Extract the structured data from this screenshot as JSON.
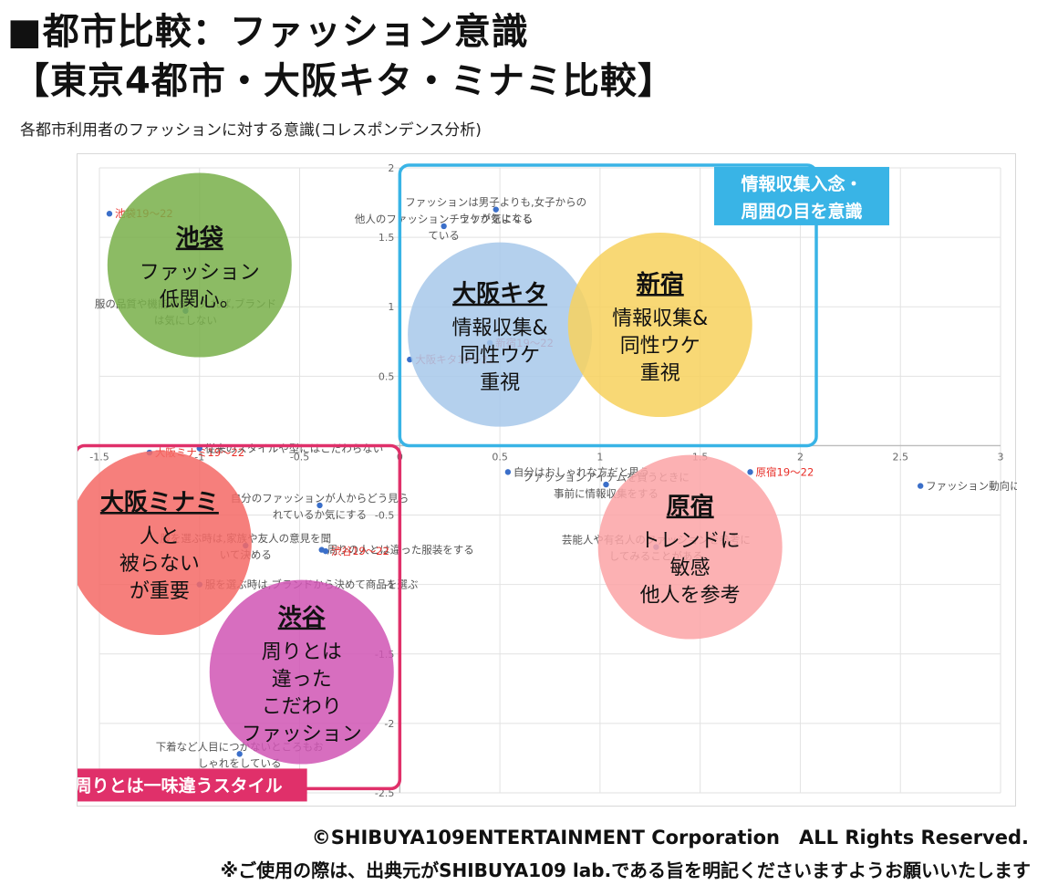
{
  "page": {
    "title_line1": "■都市比較：ファッション意識",
    "title_line2": "【東京4都市・大阪キタ・ミナミ比較】",
    "subtitle": "各都市利用者のファッションに対する意識(コレスポンデンス分析)",
    "copyright": "©SHIBUYA109ENTERTAINMENT Corporation　ALL Rights Reserved.",
    "notice": "※ご使用の際は、出典元がSHIBUYA109 lab.である旨を明記くださいますようお願いいたします"
  },
  "chart_data": {
    "type": "scatter",
    "xlim": [
      -1.5,
      3
    ],
    "ylim": [
      -2.5,
      2
    ],
    "x_ticks": [
      "-1.5",
      "-1",
      "-0.5",
      "0",
      "0.5",
      "1",
      "1.5",
      "2",
      "2.5",
      "3"
    ],
    "y_ticks": [
      "2",
      "1.5",
      "1",
      "0.5",
      "-0.5",
      "-1",
      "-1.5",
      "-2",
      "-2.5"
    ],
    "grid": true,
    "colors": {
      "gridline": "#e2e2e2",
      "axis": "#bcbcbc",
      "point": "#3b6fc9",
      "city_label": "#e8302a",
      "item_label": "#555555"
    },
    "points": [
      {
        "x": 0.48,
        "y": 1.7,
        "label_lines": [
          "ファッションは男子よりも,女子からの",
          "ウケが気になる"
        ],
        "kind": "item"
      },
      {
        "x": 0.22,
        "y": 1.58,
        "label_lines": [
          "他人のファッションチェックをよくし",
          "ている"
        ],
        "kind": "item"
      },
      {
        "x": -1.07,
        "y": 0.97,
        "label_lines": [
          "服の品質や機能が気に入れば,ブランド",
          "は気にしない"
        ],
        "kind": "item"
      },
      {
        "x": 0.05,
        "y": 0.62,
        "label_lines": [
          "大阪キタ19～22"
        ],
        "kind": "city"
      },
      {
        "x": 0.45,
        "y": 0.74,
        "label_lines": [
          "新宿19～22"
        ],
        "kind": "city"
      },
      {
        "x": -1.45,
        "y": 1.67,
        "label_lines": [
          "池袋19～22"
        ],
        "kind": "city"
      },
      {
        "x": -1.25,
        "y": -0.05,
        "label_lines": [
          "大阪ミナミ19～22"
        ],
        "kind": "city"
      },
      {
        "x": -1.0,
        "y": -0.02,
        "label_lines": [
          "従来のスタイルや型にはこだわらない"
        ],
        "kind": "item"
      },
      {
        "x": 0.54,
        "y": -0.19,
        "label_lines": [
          "自分はおしゃれな方だと思う"
        ],
        "kind": "item"
      },
      {
        "x": 1.75,
        "y": -0.19,
        "label_lines": [
          "原宿19～22"
        ],
        "kind": "city"
      },
      {
        "x": 2.6,
        "y": -0.29,
        "label_lines": [
          "ファッション動向に敏感"
        ],
        "kind": "item"
      },
      {
        "x": 1.03,
        "y": -0.28,
        "label_lines": [
          "ファッションアイテムを買うときに",
          "事前に情報収集をする"
        ],
        "kind": "item"
      },
      {
        "x": -0.4,
        "y": -0.43,
        "label_lines": [
          "自分のファッションが人からどう見ら",
          "れているか気にする"
        ],
        "kind": "item"
      },
      {
        "x": -0.77,
        "y": -0.72,
        "label_lines": [
          "服を選ぶ時は,家族や友人の意見を聞",
          "いて決める"
        ],
        "kind": "item"
      },
      {
        "x": -0.39,
        "y": -0.75,
        "label_lines": [
          "周りの人とは違った服装をする"
        ],
        "kind": "item"
      },
      {
        "x": -0.37,
        "y": -0.76,
        "label_lines": [
          "渋谷19～22"
        ],
        "kind": "city"
      },
      {
        "x": 1.28,
        "y": -0.73,
        "label_lines": [
          "芸能人や有名人のファッションを参考に",
          "してみることがある"
        ],
        "kind": "item"
      },
      {
        "x": -1.0,
        "y": -1.0,
        "label_lines": [
          "服を選ぶ時は,ブランドから決めて商品を選ぶ"
        ],
        "kind": "item"
      },
      {
        "x": -0.8,
        "y": -2.22,
        "label_lines": [
          "下着など人目につかないところもお",
          "しゃれをしている"
        ],
        "kind": "item"
      }
    ],
    "bubbles": [
      {
        "title": "池袋",
        "lines": [
          "ファッション",
          "低関心。"
        ],
        "color": "#79b04a",
        "cx": -1.0,
        "cy": 1.3,
        "r": 0.46
      },
      {
        "title": "大阪キタ",
        "lines": [
          "情報収集&",
          "同性ウケ",
          "重視"
        ],
        "color": "#a8c8ea",
        "cx": 0.5,
        "cy": 0.8,
        "r": 0.46
      },
      {
        "title": "新宿",
        "lines": [
          "情報収集&",
          "同性ウケ",
          "重視"
        ],
        "color": "#f7d25e",
        "cx": 1.3,
        "cy": 0.87,
        "r": 0.46
      },
      {
        "title": "大阪ミナミ",
        "lines": [
          "人と",
          "被らない",
          "が重要"
        ],
        "color": "#f46a66",
        "cx": -1.2,
        "cy": -0.7,
        "r": 0.46
      },
      {
        "title": "原宿",
        "lines": [
          "トレンドに",
          "敏感",
          "他人を参考"
        ],
        "color": "#fca4a6",
        "cx": 1.45,
        "cy": -0.73,
        "r": 0.46
      },
      {
        "title": "渋谷",
        "lines": [
          "周りとは",
          "違った",
          "こだわり",
          "ファッション"
        ],
        "color": "#d156b4",
        "cx": -0.49,
        "cy": -1.63,
        "r": 0.46
      }
    ],
    "regions": [
      {
        "label_lines": [
          "情報収集入念・",
          "周囲の目を意識"
        ],
        "color": "#39b4e6",
        "x0": 0,
        "y0": 2.02,
        "x1": 2.08,
        "y1": 0.0
      },
      {
        "label_lines": [
          "周りとは一味違うスタイル"
        ],
        "color": "#e0306a",
        "x0": -1.62,
        "y0": 0.0,
        "x1": 0.0,
        "y1": -2.47
      }
    ]
  }
}
